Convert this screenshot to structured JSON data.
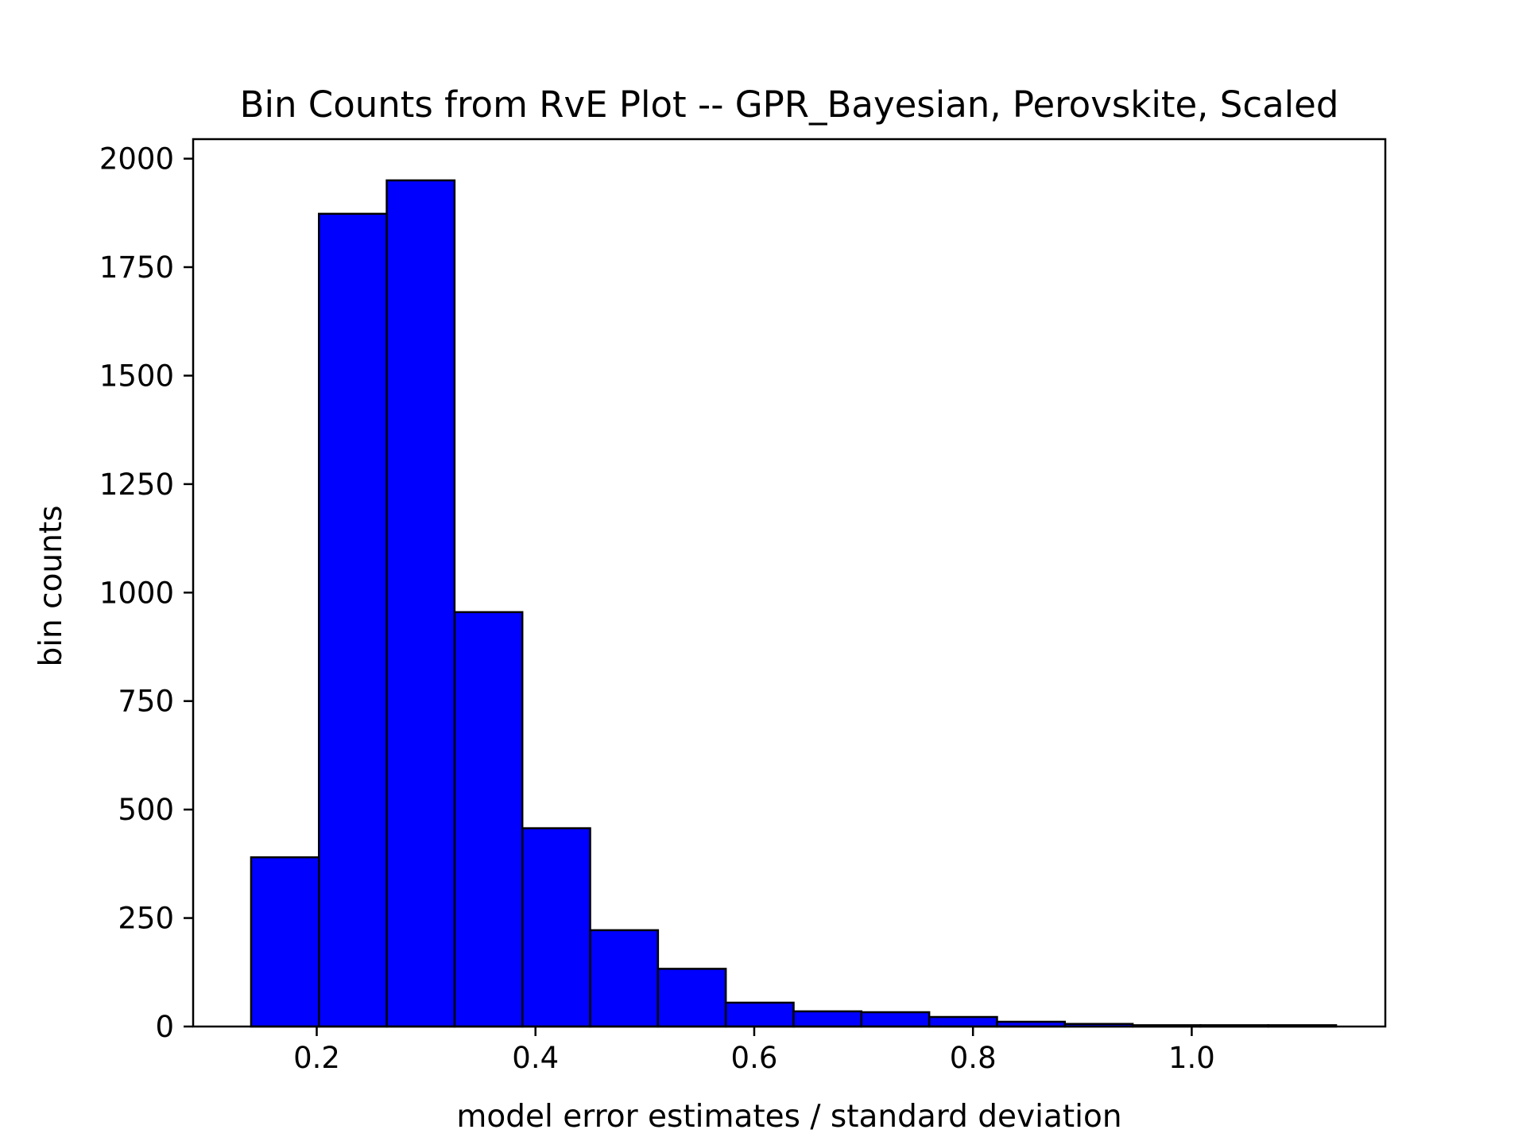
{
  "chart_data": {
    "type": "bar",
    "title": "Bin Counts from RvE Plot -- GPR_Bayesian, Perovskite, Scaled",
    "xlabel": "model error estimates / standard deviation",
    "ylabel": "bin counts",
    "xlim": [
      0.087,
      1.177
    ],
    "ylim": [
      0,
      2045
    ],
    "grid": false,
    "bin_edges": [
      0.14,
      0.202,
      0.264,
      0.326,
      0.388,
      0.45,
      0.512,
      0.574,
      0.636,
      0.698,
      0.76,
      0.822,
      0.884,
      0.946,
      1.008,
      1.07,
      1.132
    ],
    "values": [
      390,
      1873,
      1950,
      955,
      457,
      222,
      133,
      55,
      35,
      33,
      22,
      11,
      6,
      3,
      3,
      3
    ],
    "xticks": [
      {
        "value": 0.2,
        "label": "0.2"
      },
      {
        "value": 0.4,
        "label": "0.4"
      },
      {
        "value": 0.6,
        "label": "0.6"
      },
      {
        "value": 0.8,
        "label": "0.8"
      },
      {
        "value": 1.0,
        "label": "1.0"
      }
    ],
    "yticks": [
      {
        "value": 0,
        "label": "0"
      },
      {
        "value": 250,
        "label": "250"
      },
      {
        "value": 500,
        "label": "500"
      },
      {
        "value": 750,
        "label": "750"
      },
      {
        "value": 1000,
        "label": "1000"
      },
      {
        "value": 1250,
        "label": "1250"
      },
      {
        "value": 1500,
        "label": "1500"
      },
      {
        "value": 1750,
        "label": "1750"
      },
      {
        "value": 2000,
        "label": "2000"
      }
    ],
    "bar_color": "#0000ff",
    "edge_color": "#000000"
  }
}
